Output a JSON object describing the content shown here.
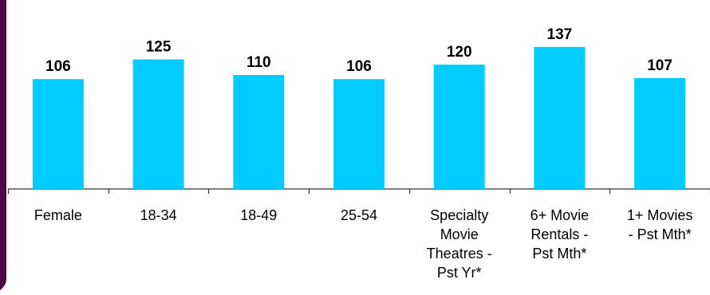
{
  "colors": {
    "bar": "#00ccff",
    "axis": "#333333",
    "frame": "#4b0a46",
    "background": "#ffffff"
  },
  "chart_data": {
    "type": "bar",
    "categories": [
      [
        "Female"
      ],
      [
        "18-34"
      ],
      [
        "18-49"
      ],
      [
        "25-54"
      ],
      [
        "Specialty",
        "Movie",
        "Theatres -",
        "Pst Yr*"
      ],
      [
        "6+ Movie",
        "Rentals -",
        "Pst Mth*"
      ],
      [
        "1+ Movies",
        "- Pst Mth*"
      ]
    ],
    "values": [
      106,
      125,
      110,
      106,
      120,
      137,
      107
    ],
    "data_labels": [
      "106",
      "125",
      "110",
      "106",
      "120",
      "137",
      "107"
    ],
    "title": "",
    "xlabel": "",
    "ylabel": "",
    "ylim": [
      0,
      140
    ],
    "grid": false,
    "legend": "none"
  }
}
